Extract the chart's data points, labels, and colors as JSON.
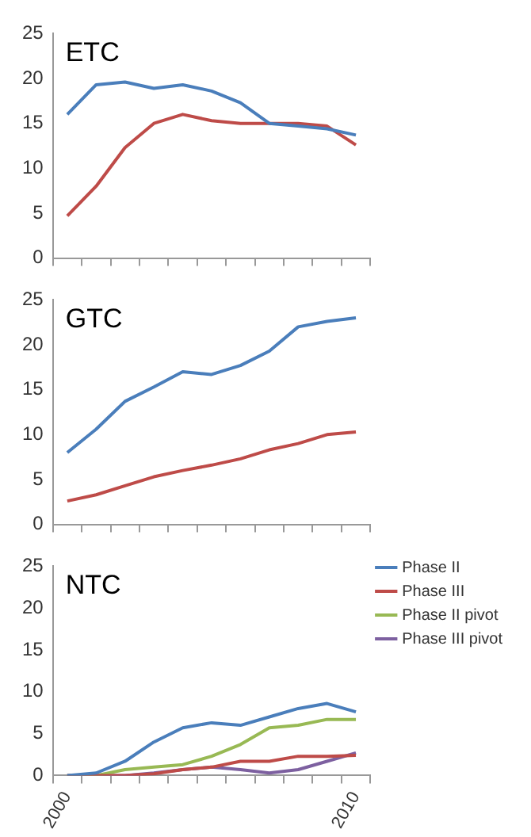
{
  "chart_data": [
    {
      "type": "line",
      "title": "ETC",
      "categories": [
        "2000",
        null,
        null,
        null,
        null,
        null,
        null,
        null,
        null,
        null,
        "2010"
      ],
      "ylim": [
        0,
        25
      ],
      "yticks": [
        0,
        5,
        10,
        15,
        20,
        25
      ],
      "grid": false,
      "legend": false,
      "tick_labels": "y",
      "series": [
        {
          "color": "#4a7ebb",
          "values": [
            16,
            19.3,
            19.6,
            18.9,
            19.3,
            18.6,
            17.3,
            15,
            14.7,
            14.4,
            13.7
          ]
        },
        {
          "color": "#be4b48",
          "values": [
            4.7,
            8,
            12.3,
            15,
            16,
            15.3,
            15,
            15,
            15,
            14.7,
            12.6
          ]
        }
      ]
    },
    {
      "type": "line",
      "title": "GTC",
      "categories": [
        "2000",
        null,
        null,
        null,
        null,
        null,
        null,
        null,
        null,
        null,
        "2010"
      ],
      "ylim": [
        0,
        25
      ],
      "yticks": [
        0,
        5,
        10,
        15,
        20,
        25
      ],
      "grid": false,
      "legend": false,
      "tick_labels": "y",
      "series": [
        {
          "color": "#4a7ebb",
          "values": [
            8,
            10.6,
            13.7,
            15.3,
            17,
            16.7,
            17.7,
            19.3,
            22,
            22.6,
            23
          ]
        },
        {
          "color": "#be4b48",
          "values": [
            2.6,
            3.3,
            4.3,
            5.3,
            6,
            6.6,
            7.3,
            8.3,
            9,
            10,
            10.3
          ]
        }
      ]
    },
    {
      "type": "line",
      "title": "NTC",
      "categories": [
        "2000",
        null,
        null,
        null,
        null,
        null,
        null,
        null,
        null,
        null,
        "2010"
      ],
      "ylim": [
        0,
        25
      ],
      "yticks": [
        0,
        5,
        10,
        15,
        20,
        25
      ],
      "grid": false,
      "legend": "top right",
      "series": [
        {
          "name": "Phase II",
          "color": "#4a7ebb",
          "values": [
            0,
            0.3,
            1.7,
            4,
            5.7,
            6.3,
            6,
            7,
            8,
            8.6,
            7.6
          ]
        },
        {
          "name": "Phase III",
          "color": "#be4b48",
          "values": [
            0,
            0,
            0,
            0.2,
            0.7,
            1,
            1.7,
            1.7,
            2.3,
            2.3,
            2.4
          ]
        },
        {
          "name": "Phase II pivot",
          "color": "#98b954",
          "values": [
            0,
            0,
            0.7,
            1,
            1.3,
            2.3,
            3.7,
            5.7,
            6,
            6.7,
            6.7
          ]
        },
        {
          "name": "Phase III pivot",
          "color": "#7d60a0",
          "values": [
            0,
            0,
            0,
            0.3,
            0.7,
            1,
            0.7,
            0.3,
            0.7,
            1.7,
            2.7
          ]
        }
      ]
    }
  ]
}
